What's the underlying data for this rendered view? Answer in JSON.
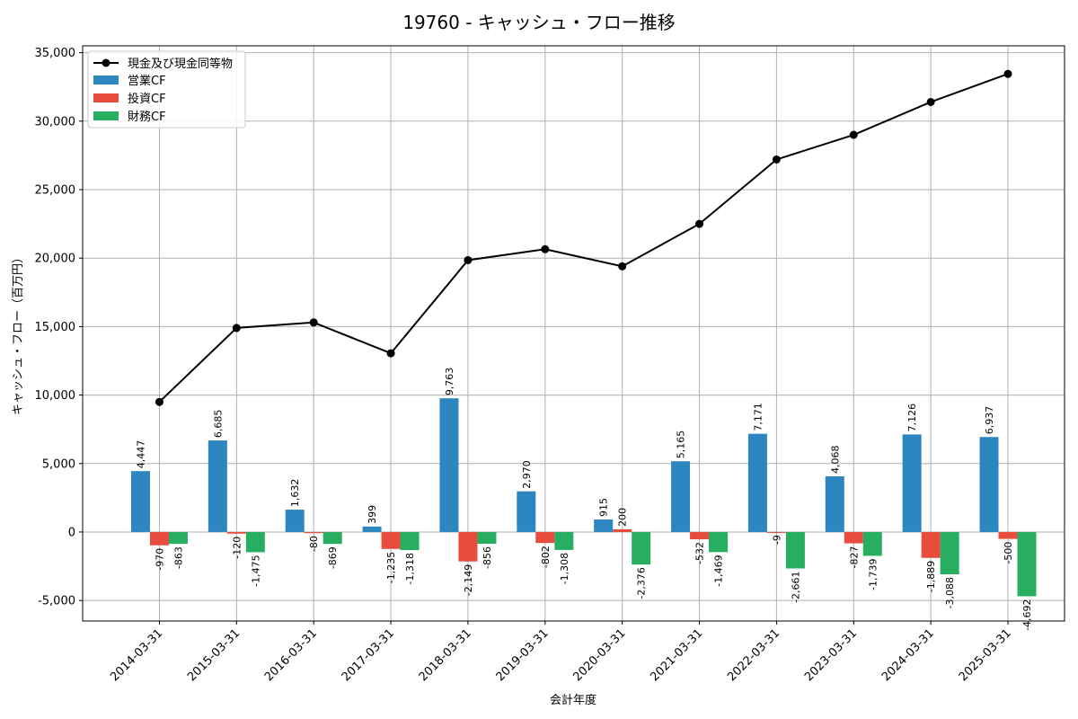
{
  "chart_data": {
    "type": "bar",
    "title": "19760 - キャッシュ・フロー推移",
    "xlabel": "会計年度",
    "ylabel": "キャッシュ・フロー（百万円）",
    "ylim": [
      -6500,
      35500
    ],
    "yticks": [
      -5000,
      0,
      5000,
      10000,
      15000,
      20000,
      25000,
      30000,
      35000
    ],
    "ytick_labels": [
      "-5,000",
      "0",
      "5,000",
      "10,000",
      "15,000",
      "20,000",
      "25,000",
      "30,000",
      "35,000"
    ],
    "grid": true,
    "legend_position": "top-left",
    "categories": [
      "2014-03-31",
      "2015-03-31",
      "2016-03-31",
      "2017-03-31",
      "2018-03-31",
      "2019-03-31",
      "2020-03-31",
      "2021-03-31",
      "2022-03-31",
      "2023-03-31",
      "2024-03-31",
      "2025-03-31"
    ],
    "series": [
      {
        "name": "営業CF",
        "kind": "bar",
        "color": "#2e86c1",
        "values": [
          4447,
          6685,
          1632,
          399,
          9763,
          2970,
          915,
          5165,
          7171,
          4068,
          7126,
          6937
        ],
        "labels": [
          "4,447",
          "6,685",
          "1,632",
          "399",
          "9,763",
          "2,970",
          "915",
          "5,165",
          "7,171",
          "4,068",
          "7,126",
          "6,937"
        ]
      },
      {
        "name": "投資CF",
        "kind": "bar",
        "color": "#e74c3c",
        "values": [
          -970,
          -120,
          -80,
          -1235,
          -2149,
          -802,
          200,
          -532,
          -9,
          -827,
          -1889,
          -500
        ],
        "labels": [
          "-970",
          "-120",
          "-80",
          "-1,235",
          "-2,149",
          "-802",
          "200",
          "-532",
          "-9",
          "-827",
          "-1,889",
          "-500"
        ]
      },
      {
        "name": "財務CF",
        "kind": "bar",
        "color": "#27ae60",
        "values": [
          -863,
          -1475,
          -869,
          -1318,
          -856,
          -1308,
          -2376,
          -1469,
          -2661,
          -1739,
          -3088,
          -4692
        ],
        "labels": [
          "-863",
          "-1,475",
          "-869",
          "-1,318",
          "-856",
          "-1,308",
          "-2,376",
          "-1,469",
          "-2,661",
          "-1,739",
          "-3,088",
          "-4,692"
        ]
      },
      {
        "name": "現金及び現金同等物",
        "kind": "line",
        "color": "#000000",
        "values": [
          9500,
          14900,
          15300,
          13050,
          19850,
          20650,
          19400,
          22500,
          27200,
          29000,
          31400,
          33450
        ]
      }
    ]
  }
}
